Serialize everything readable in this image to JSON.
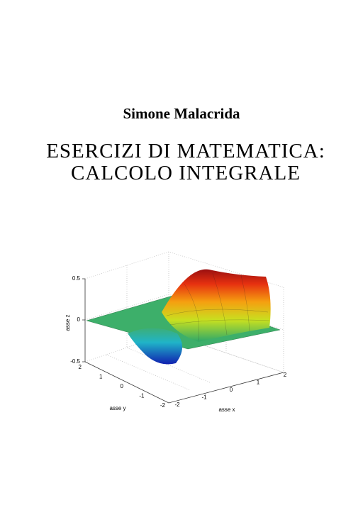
{
  "author": "Simone Malacrida",
  "title": [
    "ESERCIZI DI MATEMATICA:",
    "CALCOLO INTEGRALE"
  ],
  "figure": {
    "z_label": "asse z",
    "y_label": "asse y",
    "x_label": "asse x",
    "z_ticks": [
      "0.5",
      "0",
      "-0.5"
    ],
    "y_ticks": [
      "2",
      "1",
      "0",
      "-1",
      "-2"
    ],
    "x_ticks": [
      "-2",
      "-1",
      "0",
      "1",
      "2"
    ]
  }
}
